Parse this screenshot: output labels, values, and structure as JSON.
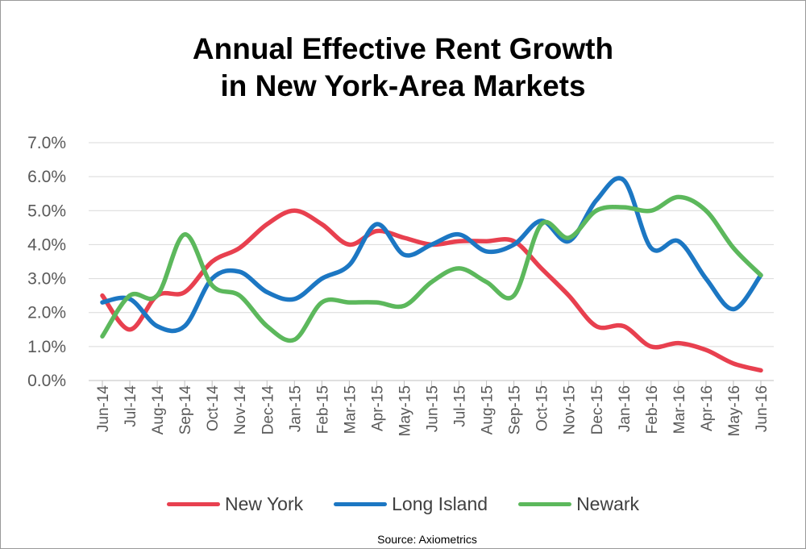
{
  "chart_data": {
    "type": "line",
    "title_line1": "Annual Effective Rent Growth",
    "title_line2": "in New York-Area Markets",
    "source": "Source: Axiometrics",
    "categories": [
      "Jun-14",
      "Jul-14",
      "Aug-14",
      "Sep-14",
      "Oct-14",
      "Nov-14",
      "Dec-14",
      "Jan-15",
      "Feb-15",
      "Mar-15",
      "Apr-15",
      "May-15",
      "Jun-15",
      "Jul-15",
      "Aug-15",
      "Sep-15",
      "Oct-15",
      "Nov-15",
      "Dec-15",
      "Jan-16",
      "Feb-16",
      "Mar-16",
      "Apr-16",
      "May-16",
      "Jun-16"
    ],
    "y_ticks": [
      "7.0%",
      "6.0%",
      "5.0%",
      "4.0%",
      "3.0%",
      "2.0%",
      "1.0%",
      "0.0%"
    ],
    "ylim": [
      0,
      0.07
    ],
    "grid": true,
    "legend_position": "bottom",
    "series": [
      {
        "name": "New York",
        "color": "#e8404f",
        "values": [
          0.025,
          0.015,
          0.025,
          0.026,
          0.035,
          0.039,
          0.046,
          0.05,
          0.046,
          0.04,
          0.044,
          0.042,
          0.04,
          0.041,
          0.041,
          0.041,
          0.033,
          0.025,
          0.016,
          0.016,
          0.01,
          0.011,
          0.009,
          0.005,
          0.003
        ]
      },
      {
        "name": "Long Island",
        "color": "#1c77c3",
        "values": [
          0.023,
          0.024,
          0.016,
          0.016,
          0.03,
          0.032,
          0.026,
          0.024,
          0.03,
          0.034,
          0.046,
          0.037,
          0.04,
          0.043,
          0.038,
          0.04,
          0.047,
          0.041,
          0.053,
          0.059,
          0.039,
          0.041,
          0.03,
          0.021,
          0.031
        ]
      },
      {
        "name": "Newark",
        "color": "#5cb85c",
        "values": [
          0.013,
          0.025,
          0.025,
          0.043,
          0.028,
          0.025,
          0.016,
          0.012,
          0.023,
          0.023,
          0.023,
          0.022,
          0.029,
          0.033,
          0.029,
          0.025,
          0.046,
          0.042,
          0.05,
          0.051,
          0.05,
          0.054,
          0.05,
          0.039,
          0.031
        ]
      }
    ]
  }
}
